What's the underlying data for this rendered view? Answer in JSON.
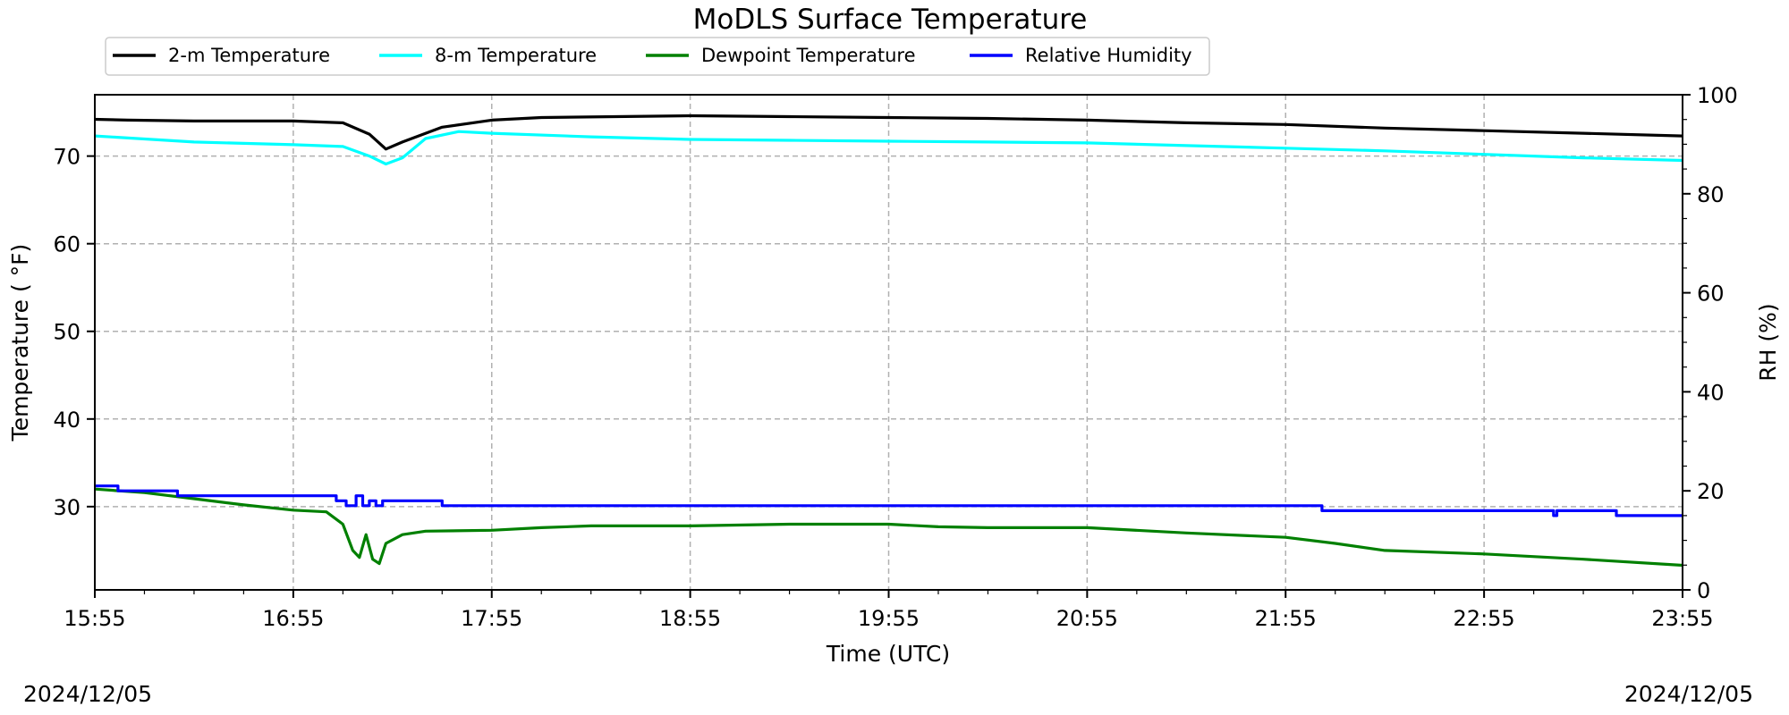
{
  "chart_data": {
    "type": "line",
    "title": "MoDLS Surface Temperature",
    "xlabel": "Time (UTC)",
    "ylabel_left": "Temperature ($^\\circ$F)",
    "ylabel_left_display": "Temperature ( °F)",
    "ylabel_right": "RH (%)",
    "x_ticks": [
      "15:55",
      "16:55",
      "17:55",
      "18:55",
      "19:55",
      "20:55",
      "21:55",
      "22:55",
      "23:55"
    ],
    "x_range_hours": [
      15.9167,
      23.9167
    ],
    "ylim_left": [
      20.5,
      77
    ],
    "yticks_left": [
      30,
      40,
      50,
      60,
      70
    ],
    "ylim_right": [
      0,
      100
    ],
    "yticks_right": [
      0,
      20,
      40,
      60,
      80,
      100
    ],
    "grid": true,
    "legend_position": "top-left, above plot",
    "date_left": "2024/12/05",
    "date_right": "2024/12/05",
    "series": [
      {
        "name": "2-m Temperature",
        "axis": "left",
        "color": "#000000",
        "points": [
          [
            "15:55",
            74.2
          ],
          [
            "16:05",
            74.1
          ],
          [
            "16:25",
            74.0
          ],
          [
            "16:55",
            74.0
          ],
          [
            "17:10",
            73.8
          ],
          [
            "17:18",
            72.5
          ],
          [
            "17:23",
            70.8
          ],
          [
            "17:28",
            71.6
          ],
          [
            "17:40",
            73.3
          ],
          [
            "17:55",
            74.1
          ],
          [
            "18:10",
            74.4
          ],
          [
            "18:55",
            74.6
          ],
          [
            "19:25",
            74.5
          ],
          [
            "19:55",
            74.4
          ],
          [
            "20:25",
            74.3
          ],
          [
            "20:55",
            74.1
          ],
          [
            "21:25",
            73.8
          ],
          [
            "21:55",
            73.6
          ],
          [
            "22:25",
            73.2
          ],
          [
            "22:55",
            72.9
          ],
          [
            "23:25",
            72.6
          ],
          [
            "23:55",
            72.3
          ]
        ]
      },
      {
        "name": "8-m Temperature",
        "axis": "left",
        "color": "#00ffff",
        "points": [
          [
            "15:55",
            72.3
          ],
          [
            "16:25",
            71.6
          ],
          [
            "16:55",
            71.3
          ],
          [
            "17:10",
            71.1
          ],
          [
            "17:18",
            70.0
          ],
          [
            "17:23",
            69.1
          ],
          [
            "17:28",
            69.8
          ],
          [
            "17:35",
            72.0
          ],
          [
            "17:45",
            72.8
          ],
          [
            "17:55",
            72.6
          ],
          [
            "18:25",
            72.2
          ],
          [
            "18:55",
            71.9
          ],
          [
            "19:25",
            71.8
          ],
          [
            "19:55",
            71.7
          ],
          [
            "20:25",
            71.6
          ],
          [
            "20:55",
            71.5
          ],
          [
            "21:25",
            71.2
          ],
          [
            "21:55",
            70.9
          ],
          [
            "22:25",
            70.6
          ],
          [
            "22:55",
            70.2
          ],
          [
            "23:25",
            69.8
          ],
          [
            "23:55",
            69.5
          ]
        ]
      },
      {
        "name": "Dewpoint Temperature",
        "axis": "left",
        "color": "#008000",
        "points": [
          [
            "15:55",
            32.0
          ],
          [
            "16:10",
            31.6
          ],
          [
            "16:25",
            30.9
          ],
          [
            "16:40",
            30.2
          ],
          [
            "16:55",
            29.6
          ],
          [
            "17:05",
            29.4
          ],
          [
            "17:10",
            28.0
          ],
          [
            "17:13",
            25.0
          ],
          [
            "17:15",
            24.2
          ],
          [
            "17:17",
            26.8
          ],
          [
            "17:19",
            24.0
          ],
          [
            "17:21",
            23.5
          ],
          [
            "17:23",
            25.8
          ],
          [
            "17:28",
            26.8
          ],
          [
            "17:35",
            27.2
          ],
          [
            "17:55",
            27.3
          ],
          [
            "18:10",
            27.6
          ],
          [
            "18:25",
            27.8
          ],
          [
            "18:55",
            27.8
          ],
          [
            "19:25",
            28.0
          ],
          [
            "19:55",
            28.0
          ],
          [
            "20:10",
            27.7
          ],
          [
            "20:25",
            27.6
          ],
          [
            "20:55",
            27.6
          ],
          [
            "21:25",
            27.0
          ],
          [
            "21:55",
            26.5
          ],
          [
            "22:10",
            25.8
          ],
          [
            "22:25",
            25.0
          ],
          [
            "22:55",
            24.6
          ],
          [
            "23:25",
            24.0
          ],
          [
            "23:55",
            23.3
          ]
        ]
      },
      {
        "name": "Relative Humidity",
        "axis": "right",
        "color": "#0000ff",
        "steps": [
          [
            "15:55",
            21
          ],
          [
            "16:02",
            20
          ],
          [
            "16:20",
            19
          ],
          [
            "17:08",
            18
          ],
          [
            "17:11",
            17
          ],
          [
            "17:14",
            19
          ],
          [
            "17:16",
            17
          ],
          [
            "17:18",
            18
          ],
          [
            "17:20",
            17
          ],
          [
            "17:22",
            18
          ],
          [
            "17:26",
            18
          ],
          [
            "17:40",
            17
          ],
          [
            "22:05",
            17
          ],
          [
            "22:06",
            16
          ],
          [
            "23:15",
            16
          ],
          [
            "23:16",
            15
          ],
          [
            "23:17",
            16
          ],
          [
            "23:35",
            15
          ],
          [
            "23:55",
            15
          ]
        ]
      }
    ]
  }
}
